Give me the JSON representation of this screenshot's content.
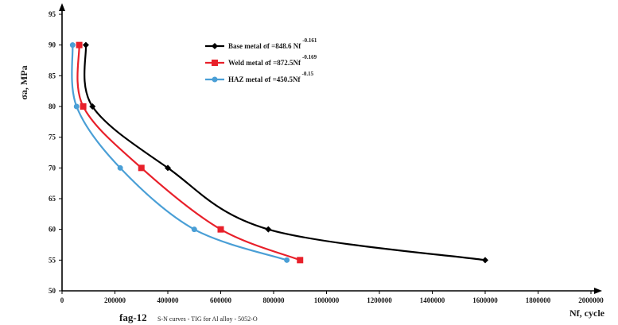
{
  "chart_data": {
    "type": "line",
    "caption": "fag-12",
    "caption_subtitle": "S-N curves - TIG for Al alloy - 5052-O",
    "xlabel": "Nf, cycle",
    "ylabel": "σa, MPa",
    "xlim": [
      0,
      2000000
    ],
    "ylim": [
      50,
      95
    ],
    "x_ticks": [
      0,
      200000,
      400000,
      600000,
      800000,
      1000000,
      1200000,
      1400000,
      1600000,
      1800000,
      2000000
    ],
    "y_ticks": [
      50,
      55,
      60,
      65,
      70,
      75,
      80,
      85,
      90,
      95
    ],
    "grid": false,
    "legend_position": "top-center",
    "series": [
      {
        "name": "Base metal σf =848.6 Nf",
        "exponent": "-0.161",
        "color": "#000000",
        "marker": "diamond",
        "points": [
          [
            90000,
            90
          ],
          [
            115000,
            80
          ],
          [
            400000,
            70
          ],
          [
            780000,
            60
          ],
          [
            1600000,
            55
          ]
        ]
      },
      {
        "name": "Weld metal σf =872.5Nf",
        "exponent": "-0.169",
        "color": "#e8202a",
        "marker": "square",
        "points": [
          [
            65000,
            90
          ],
          [
            80000,
            80
          ],
          [
            300000,
            70
          ],
          [
            600000,
            60
          ],
          [
            900000,
            55
          ]
        ]
      },
      {
        "name": "HAZ metal σf =450.5Nf",
        "exponent": "-0.15",
        "color": "#4a9fd6",
        "marker": "circle",
        "points": [
          [
            40000,
            90
          ],
          [
            55000,
            80
          ],
          [
            220000,
            70
          ],
          [
            500000,
            60
          ],
          [
            850000,
            55
          ]
        ]
      }
    ]
  }
}
